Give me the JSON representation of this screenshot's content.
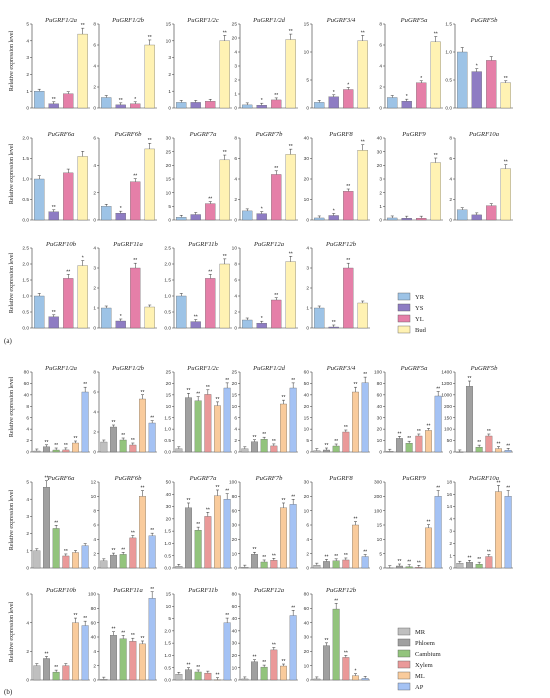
{
  "panel_labels": [
    "(a)",
    "(b)"
  ],
  "ylabel": "Relative expression level",
  "colors": {
    "YR": "#9dc3e6",
    "YS": "#8e7cc3",
    "YL": "#e57fa8",
    "Bud": "#fff2b3",
    "MR": "#bfbfbf",
    "Phloem": "#a0a0a0",
    "Cambium": "#93c47d",
    "Xylem": "#ea9999",
    "ML": "#f9cb9c",
    "AP": "#a4c2f4"
  },
  "chart_data": [
    {
      "type": "bar",
      "panel": "(a)",
      "categories": [
        "YR",
        "YS",
        "YL",
        "Bud"
      ],
      "legend": [
        "YR",
        "YS",
        "YL",
        "Bud"
      ],
      "charts": [
        {
          "title": "PuGRF1/2a",
          "values": [
            1.0,
            0.25,
            0.85,
            4.4
          ],
          "sig": [
            "",
            "**",
            "",
            "**"
          ],
          "ticks": [
            "0",
            "1",
            "2",
            "3",
            "4",
            "5"
          ],
          "ylim": [
            0,
            5
          ]
        },
        {
          "title": "PuGRF1/2b",
          "values": [
            1.0,
            0.3,
            0.4,
            6.0
          ],
          "sig": [
            "",
            "**",
            "*",
            "**"
          ],
          "ticks": [
            "0",
            "2",
            "4",
            "6",
            "8"
          ],
          "ylim": [
            0,
            8
          ]
        },
        {
          "title": "PuGRF1/2c",
          "values": [
            1.0,
            1.0,
            1.2,
            12.0
          ],
          "sig": [
            "",
            "",
            "",
            "**"
          ],
          "ticks": [
            "0",
            "1",
            "2",
            "3",
            "10",
            "15"
          ],
          "ylim": [
            0,
            15
          ]
        },
        {
          "title": "PuGRF1/2d",
          "values": [
            1.0,
            0.9,
            2.6,
            22.0
          ],
          "sig": [
            "",
            "*",
            "**",
            "**"
          ],
          "ticks": [
            "0",
            "1",
            "2",
            "3",
            "4",
            "20",
            "25"
          ],
          "ylim": [
            0,
            27
          ]
        },
        {
          "title": "PuGRF3/4",
          "values": [
            1.0,
            2.0,
            3.3,
            12.0
          ],
          "sig": [
            "",
            "*",
            "*",
            "**"
          ],
          "ticks": [
            "0",
            "5",
            "10",
            "15"
          ],
          "ylim": [
            0,
            15
          ]
        },
        {
          "title": "PuGRF5a",
          "values": [
            1.0,
            0.65,
            2.4,
            6.3
          ],
          "sig": [
            "",
            "*",
            "*",
            "**"
          ],
          "ticks": [
            "0",
            "2",
            "4",
            "6",
            "8"
          ],
          "ylim": [
            0,
            8
          ]
        },
        {
          "title": "PuGRF5b",
          "values": [
            1.0,
            0.65,
            0.85,
            0.45
          ],
          "sig": [
            "",
            "*",
            "",
            "**"
          ],
          "ticks": [
            "0.0",
            "0.5",
            "1.0",
            "1.5"
          ],
          "ylim": [
            0,
            1.5
          ]
        },
        {
          "title": "PuGRF6a",
          "values": [
            1.0,
            0.2,
            1.15,
            1.55
          ],
          "sig": [
            "",
            "**",
            "",
            ""
          ],
          "ticks": [
            "0.0",
            "0.5",
            "1.0",
            "1.5",
            "2.0"
          ],
          "ylim": [
            0,
            2.0
          ]
        },
        {
          "title": "PuGRF6b",
          "values": [
            1.0,
            0.5,
            2.8,
            5.2
          ],
          "sig": [
            "",
            "*",
            "**",
            "**"
          ],
          "ticks": [
            "0",
            "2",
            "4",
            "6"
          ],
          "ylim": [
            0,
            6
          ]
        },
        {
          "title": "PuGRF7a",
          "values": [
            1.0,
            2.0,
            6.0,
            22.0
          ],
          "sig": [
            "",
            "",
            "**",
            "**"
          ],
          "ticks": [
            "0",
            "5",
            "10",
            "15",
            "20",
            "25",
            "30"
          ],
          "ylim": [
            0,
            30
          ]
        },
        {
          "title": "PuGRF7b",
          "values": [
            1.0,
            0.7,
            5.0,
            7.2
          ],
          "sig": [
            "",
            "*",
            "**",
            "**"
          ],
          "ticks": [
            "0",
            "2",
            "4",
            "6",
            "8"
          ],
          "ylim": [
            0,
            9
          ]
        },
        {
          "title": "PuGRF8",
          "values": [
            1.0,
            2.2,
            14.0,
            34.0
          ],
          "sig": [
            "",
            "*",
            "**",
            "**"
          ],
          "ticks": [
            "0",
            "10",
            "20",
            "30",
            "40"
          ],
          "ylim": [
            0,
            40
          ]
        },
        {
          "title": "PuGRF9",
          "values": [
            1.0,
            0.9,
            0.9,
            28.0
          ],
          "sig": [
            "",
            "",
            "",
            "**"
          ],
          "ticks": [
            "0",
            "1",
            "2",
            "3",
            "20",
            "30",
            "40"
          ],
          "ylim": [
            0,
            40
          ]
        },
        {
          "title": "PuGRF10a",
          "values": [
            1.0,
            0.5,
            1.4,
            5.0
          ],
          "sig": [
            "",
            "",
            "",
            "**"
          ],
          "ticks": [
            "0",
            "2",
            "4",
            "6",
            "8"
          ],
          "ylim": [
            0,
            8
          ]
        },
        {
          "title": "PuGRF10b",
          "values": [
            1.0,
            0.35,
            1.55,
            1.95
          ],
          "sig": [
            "",
            "**",
            "**",
            "*"
          ],
          "ticks": [
            "0.0",
            "0.5",
            "1.0",
            "1.5",
            "2.0",
            "2.5"
          ],
          "ylim": [
            0,
            2.5
          ]
        },
        {
          "title": "PuGRF11a",
          "values": [
            1.0,
            0.35,
            3.0,
            1.05
          ],
          "sig": [
            "",
            "*",
            "**",
            ""
          ],
          "ticks": [
            "0",
            "1",
            "2",
            "3",
            "4"
          ],
          "ylim": [
            0,
            4
          ]
        },
        {
          "title": "PuGRF11b",
          "values": [
            1.0,
            0.2,
            1.55,
            2.0
          ],
          "sig": [
            "",
            "**",
            "**",
            "**"
          ],
          "ticks": [
            "0.0",
            "0.5",
            "1.0",
            "1.5",
            "2.0",
            "2.5"
          ],
          "ylim": [
            0,
            2.5
          ]
        },
        {
          "title": "PuGRF12a",
          "values": [
            1.0,
            0.6,
            3.5,
            8.3
          ],
          "sig": [
            "",
            "*",
            "**",
            "**"
          ],
          "ticks": [
            "0",
            "2",
            "4",
            "6",
            "8",
            "10"
          ],
          "ylim": [
            0,
            10
          ]
        },
        {
          "title": "PuGRF12b",
          "values": [
            1.0,
            0.05,
            3.0,
            1.25
          ],
          "sig": [
            "",
            "**",
            "**",
            ""
          ],
          "ticks": [
            "0",
            "1",
            "2",
            "3",
            "4"
          ],
          "ylim": [
            0,
            4
          ]
        }
      ]
    },
    {
      "type": "bar",
      "panel": "(b)",
      "categories": [
        "MR",
        "Phloem",
        "Cambium",
        "Xylem",
        "ML",
        "AP"
      ],
      "legend": [
        "MR",
        "Phloem",
        "Cambium",
        "Xylem",
        "ML",
        "AP"
      ],
      "charts": [
        {
          "title": "PuGRF1/2a",
          "values": [
            1.0,
            5.2,
            2.0,
            2.1,
            9.0,
            60.0
          ],
          "sig": [
            "",
            "**",
            "**",
            "**",
            "**",
            "**"
          ],
          "ticks": [
            "0",
            "2",
            "4",
            "6",
            "8",
            "40",
            "60",
            "80"
          ],
          "ylim": [
            0,
            80
          ]
        },
        {
          "title": "PuGRF1/2b",
          "values": [
            1.0,
            2.5,
            1.2,
            0.7,
            5.3,
            2.9
          ],
          "sig": [
            "",
            "**",
            "**",
            "**",
            "**",
            "**"
          ],
          "ticks": [
            "0",
            "2",
            "4",
            "6",
            "8"
          ],
          "ylim": [
            0,
            8
          ]
        },
        {
          "title": "PuGRF1/2c",
          "values": [
            1.0,
            17.0,
            16.0,
            18.0,
            14.5,
            20.0
          ],
          "sig": [
            "",
            "**",
            "**",
            "**",
            "**",
            "**"
          ],
          "ticks": [
            "0.0",
            "0.5",
            "1.0",
            "1.5",
            "10",
            "15",
            "20",
            "25"
          ],
          "ylim": [
            0,
            25
          ]
        },
        {
          "title": "PuGRF1/2d",
          "values": [
            1.0,
            3.2,
            4.0,
            1.9,
            15.0,
            20.0
          ],
          "sig": [
            "",
            "**",
            "**",
            "**",
            "**",
            "**"
          ],
          "ticks": [
            "0",
            "2",
            "4",
            "6",
            "10",
            "15",
            "20",
            "25"
          ],
          "ylim": [
            0,
            25
          ]
        },
        {
          "title": "PuGRF3/4",
          "values": [
            1.0,
            1.5,
            4.5,
            15.0,
            45.0,
            52.0
          ],
          "sig": [
            "",
            "**",
            "**",
            "**",
            "**",
            "**"
          ],
          "ticks": [
            "0",
            "5",
            "10",
            "15",
            "20",
            "40",
            "50",
            "60"
          ],
          "ylim": [
            0,
            60
          ]
        },
        {
          "title": "PuGRF5a",
          "values": [
            1.0,
            17.0,
            11.0,
            20.0,
            27.0,
            70.0
          ],
          "sig": [
            "",
            "**",
            "**",
            "**",
            "**",
            "**"
          ],
          "ticks": [
            "0",
            "10",
            "20",
            "30",
            "40",
            "60",
            "80",
            "100"
          ],
          "ylim": [
            0,
            100
          ]
        },
        {
          "title": "PuGRF5b",
          "values": [
            1.0,
            1150.0,
            85.0,
            280.0,
            60.0,
            30.0
          ],
          "sig": [
            "",
            "**",
            "**",
            "**",
            "**",
            "**"
          ],
          "ticks": [
            "0",
            "50",
            "100",
            "150",
            "200",
            "1000",
            "1200",
            "1400"
          ],
          "ylim": [
            0,
            1400
          ]
        },
        {
          "title": "PuGRF6a",
          "values": [
            1.0,
            4.7,
            2.3,
            0.7,
            0.9,
            1.3
          ],
          "sig": [
            "",
            "**",
            "**",
            "**",
            "",
            ""
          ],
          "ticks": [
            "0",
            "1",
            "2",
            "3",
            "4",
            "5"
          ],
          "ylim": [
            0,
            5
          ]
        },
        {
          "title": "PuGRF6b",
          "values": [
            1.0,
            1.8,
            1.9,
            4.2,
            10.0,
            4.5
          ],
          "sig": [
            "",
            "**",
            "**",
            "**",
            "**",
            "**"
          ],
          "ticks": [
            "0",
            "2",
            "4",
            "6",
            "8",
            "10",
            "12"
          ],
          "ylim": [
            0,
            12
          ]
        },
        {
          "title": "PuGRF7a",
          "values": [
            1.0,
            35.0,
            22.0,
            30.0,
            42.0,
            40.0
          ],
          "sig": [
            "",
            "**",
            "**",
            "**",
            "**",
            "**"
          ],
          "ticks": [
            "0.0",
            "0.5",
            "1.0",
            "1.5",
            "20",
            "30",
            "40",
            "50"
          ],
          "ylim": [
            0,
            50
          ]
        },
        {
          "title": "PuGRF7b",
          "values": [
            1.0,
            16.0,
            7.0,
            9.0,
            70.0,
            74.0
          ],
          "sig": [
            "",
            "**",
            "**",
            "**",
            "**",
            "**"
          ],
          "ticks": [
            "0",
            "10",
            "20",
            "30",
            "60",
            "80",
            "100"
          ],
          "ylim": [
            0,
            100
          ]
        },
        {
          "title": "PuGRF8",
          "values": [
            1.0,
            2.3,
            2.5,
            2.8,
            15.0,
            4.0
          ],
          "sig": [
            "",
            "**",
            "**",
            "**",
            "**",
            "**"
          ],
          "ticks": [
            "0",
            "2",
            "4",
            "6",
            "10",
            "20",
            "30"
          ],
          "ylim": [
            0,
            30
          ]
        },
        {
          "title": "PuGRF9",
          "values": [
            1.0,
            7.0,
            4.5,
            2.5,
            140.0,
            250.0
          ],
          "sig": [
            "",
            "**",
            "**",
            "**",
            "**",
            "**"
          ],
          "ticks": [
            "0",
            "5",
            "10",
            "15",
            "100",
            "200",
            "300"
          ],
          "ylim": [
            0,
            300
          ]
        },
        {
          "title": "PuGRF10a",
          "values": [
            1.0,
            1.2,
            0.8,
            2.4,
            16.0,
            15.0
          ],
          "sig": [
            "",
            "**",
            "**",
            "**",
            "**",
            "**"
          ],
          "ticks": [
            "0",
            "1",
            "2",
            "3",
            "4",
            "14",
            "16",
            "18"
          ],
          "ylim": [
            0,
            18
          ]
        },
        {
          "title": "PuGRF10b",
          "values": [
            1.0,
            1.5,
            0.55,
            1.0,
            4.0,
            3.8
          ],
          "sig": [
            "",
            "**",
            "**",
            "",
            "**",
            "**"
          ],
          "ticks": [
            "0",
            "2",
            "4",
            "6"
          ],
          "ylim": [
            0,
            6
          ]
        },
        {
          "title": "PuGRF11a",
          "values": [
            1.0,
            52.0,
            48.0,
            45.0,
            42.0,
            95.0
          ],
          "sig": [
            "",
            "**",
            "**",
            "**",
            "**",
            "**"
          ],
          "ticks": [
            "0",
            "2",
            "4",
            "40",
            "60",
            "80",
            "100"
          ],
          "ylim": [
            0,
            100
          ]
        },
        {
          "title": "PuGRF11b",
          "values": [
            1.0,
            1.8,
            1.4,
            1.2,
            0.05,
            10.0
          ],
          "sig": [
            "",
            "**",
            "**",
            "",
            "**",
            "**"
          ],
          "ticks": [
            "0.0",
            "0.5",
            "1.0",
            "1.5",
            "2.0",
            "5",
            "10",
            "15"
          ],
          "ylim": [
            0,
            15
          ]
        },
        {
          "title": "PuGRF12a",
          "values": [
            1.0,
            17.0,
            12.0,
            28.0,
            13.0,
            60.0
          ],
          "sig": [
            "",
            "**",
            "**",
            "**",
            "**",
            "**"
          ],
          "ticks": [
            "0",
            "10",
            "20",
            "30",
            "40",
            "40",
            "60",
            "80"
          ],
          "ylim": [
            0,
            80
          ]
        },
        {
          "title": "PuGRF12b",
          "values": [
            1.0,
            32.0,
            66.0,
            21.0,
            4.0,
            1.5
          ],
          "sig": [
            "",
            "**",
            "**",
            "**",
            "*",
            ""
          ],
          "ticks": [
            "0",
            "10",
            "20",
            "30",
            "40",
            "60",
            "80"
          ],
          "ylim": [
            0,
            80
          ]
        }
      ]
    }
  ]
}
